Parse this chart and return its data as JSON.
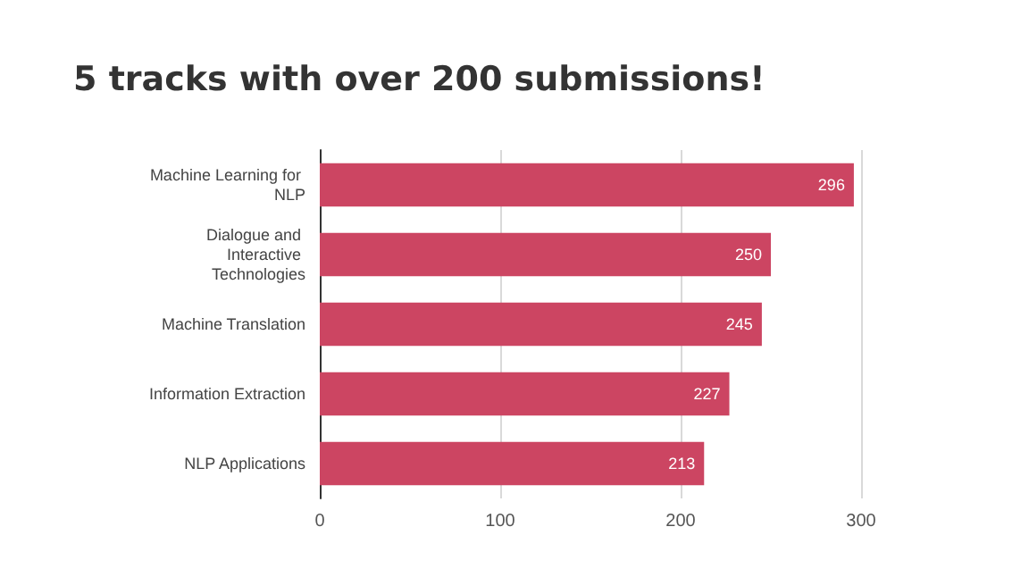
{
  "chart_data": {
    "type": "bar",
    "orientation": "horizontal",
    "title": "5 tracks with over 200 submissions!",
    "categories": [
      "Machine Learning for NLP",
      "Dialogue and Interactive Technologies",
      "Machine Translation",
      "Information Extraction",
      "NLP Applications"
    ],
    "values": [
      296,
      250,
      245,
      227,
      213
    ],
    "color": "#cc4562",
    "xlim": [
      0,
      300
    ],
    "xticks": [
      0,
      100,
      200,
      300
    ],
    "grid": "x",
    "data_labels": true
  }
}
